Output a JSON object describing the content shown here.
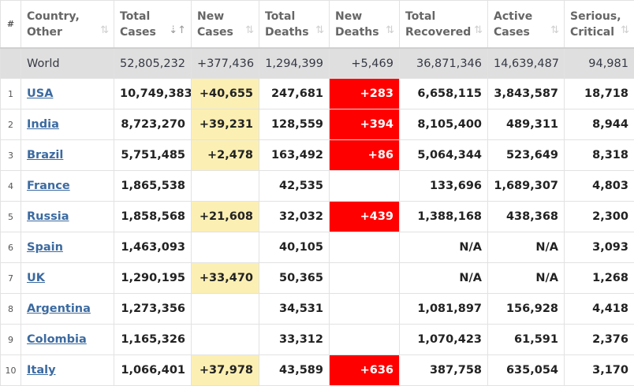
{
  "headers": [
    {
      "label": "#",
      "name": "header-rank"
    },
    {
      "label": "Country, Other",
      "name": "header-country",
      "l1": "Country,",
      "l2": "Other"
    },
    {
      "label": "Total Cases",
      "name": "header-total-cases",
      "l1": "Total",
      "l2": "Cases",
      "active": true
    },
    {
      "label": "New Cases",
      "name": "header-new-cases",
      "l1": "New",
      "l2": "Cases"
    },
    {
      "label": "Total Deaths",
      "name": "header-total-deaths",
      "l1": "Total",
      "l2": "Deaths"
    },
    {
      "label": "New Deaths",
      "name": "header-new-deaths",
      "l1": "New",
      "l2": "Deaths"
    },
    {
      "label": "Total Recovered",
      "name": "header-total-recovered",
      "l1": "Total",
      "l2": "Recovered"
    },
    {
      "label": "Active Cases",
      "name": "header-active-cases",
      "l1": "Active",
      "l2": "Cases"
    },
    {
      "label": "Serious, Critical",
      "name": "header-serious-critical",
      "l1": "Serious,",
      "l2": "Critical"
    }
  ],
  "world": {
    "label": "World",
    "total_cases": "52,805,232",
    "new_cases": "+377,436",
    "total_deaths": "1,294,399",
    "new_deaths": "+5,469",
    "total_recovered": "36,871,346",
    "active_cases": "14,639,487",
    "serious_critical": "94,981"
  },
  "rows": [
    {
      "rank": "1",
      "country": "USA",
      "total_cases": "10,749,383",
      "new_cases": "+40,655",
      "total_deaths": "247,681",
      "new_deaths": "+283",
      "total_recovered": "6,658,115",
      "active_cases": "3,843,587",
      "serious_critical": "18,718"
    },
    {
      "rank": "2",
      "country": "India",
      "total_cases": "8,723,270",
      "new_cases": "+39,231",
      "total_deaths": "128,559",
      "new_deaths": "+394",
      "total_recovered": "8,105,400",
      "active_cases": "489,311",
      "serious_critical": "8,944"
    },
    {
      "rank": "3",
      "country": "Brazil",
      "total_cases": "5,751,485",
      "new_cases": "+2,478",
      "total_deaths": "163,492",
      "new_deaths": "+86",
      "total_recovered": "5,064,344",
      "active_cases": "523,649",
      "serious_critical": "8,318"
    },
    {
      "rank": "4",
      "country": "France",
      "total_cases": "1,865,538",
      "new_cases": "",
      "total_deaths": "42,535",
      "new_deaths": "",
      "total_recovered": "133,696",
      "active_cases": "1,689,307",
      "serious_critical": "4,803"
    },
    {
      "rank": "5",
      "country": "Russia",
      "total_cases": "1,858,568",
      "new_cases": "+21,608",
      "total_deaths": "32,032",
      "new_deaths": "+439",
      "total_recovered": "1,388,168",
      "active_cases": "438,368",
      "serious_critical": "2,300"
    },
    {
      "rank": "6",
      "country": "Spain",
      "total_cases": "1,463,093",
      "new_cases": "",
      "total_deaths": "40,105",
      "new_deaths": "",
      "total_recovered": "N/A",
      "active_cases": "N/A",
      "serious_critical": "3,093"
    },
    {
      "rank": "7",
      "country": "UK",
      "total_cases": "1,290,195",
      "new_cases": "+33,470",
      "total_deaths": "50,365",
      "new_deaths": "",
      "total_recovered": "N/A",
      "active_cases": "N/A",
      "serious_critical": "1,268"
    },
    {
      "rank": "8",
      "country": "Argentina",
      "total_cases": "1,273,356",
      "new_cases": "",
      "total_deaths": "34,531",
      "new_deaths": "",
      "total_recovered": "1,081,897",
      "active_cases": "156,928",
      "serious_critical": "4,418"
    },
    {
      "rank": "9",
      "country": "Colombia",
      "total_cases": "1,165,326",
      "new_cases": "",
      "total_deaths": "33,312",
      "new_deaths": "",
      "total_recovered": "1,070,423",
      "active_cases": "61,591",
      "serious_critical": "2,376"
    },
    {
      "rank": "10",
      "country": "Italy",
      "total_cases": "1,066,401",
      "new_cases": "+37,978",
      "total_deaths": "43,589",
      "new_deaths": "+636",
      "total_recovered": "387,758",
      "active_cases": "635,054",
      "serious_critical": "3,170"
    }
  ],
  "icons": {
    "sort": "sort-arrows-icon",
    "sort_active": "sort-descending-icon"
  },
  "colors": {
    "new_cases_bg": "#fcefb3",
    "new_deaths_bg": "#ff0000",
    "world_row_bg": "#dfdfdf",
    "link": "#3b6aa0"
  }
}
